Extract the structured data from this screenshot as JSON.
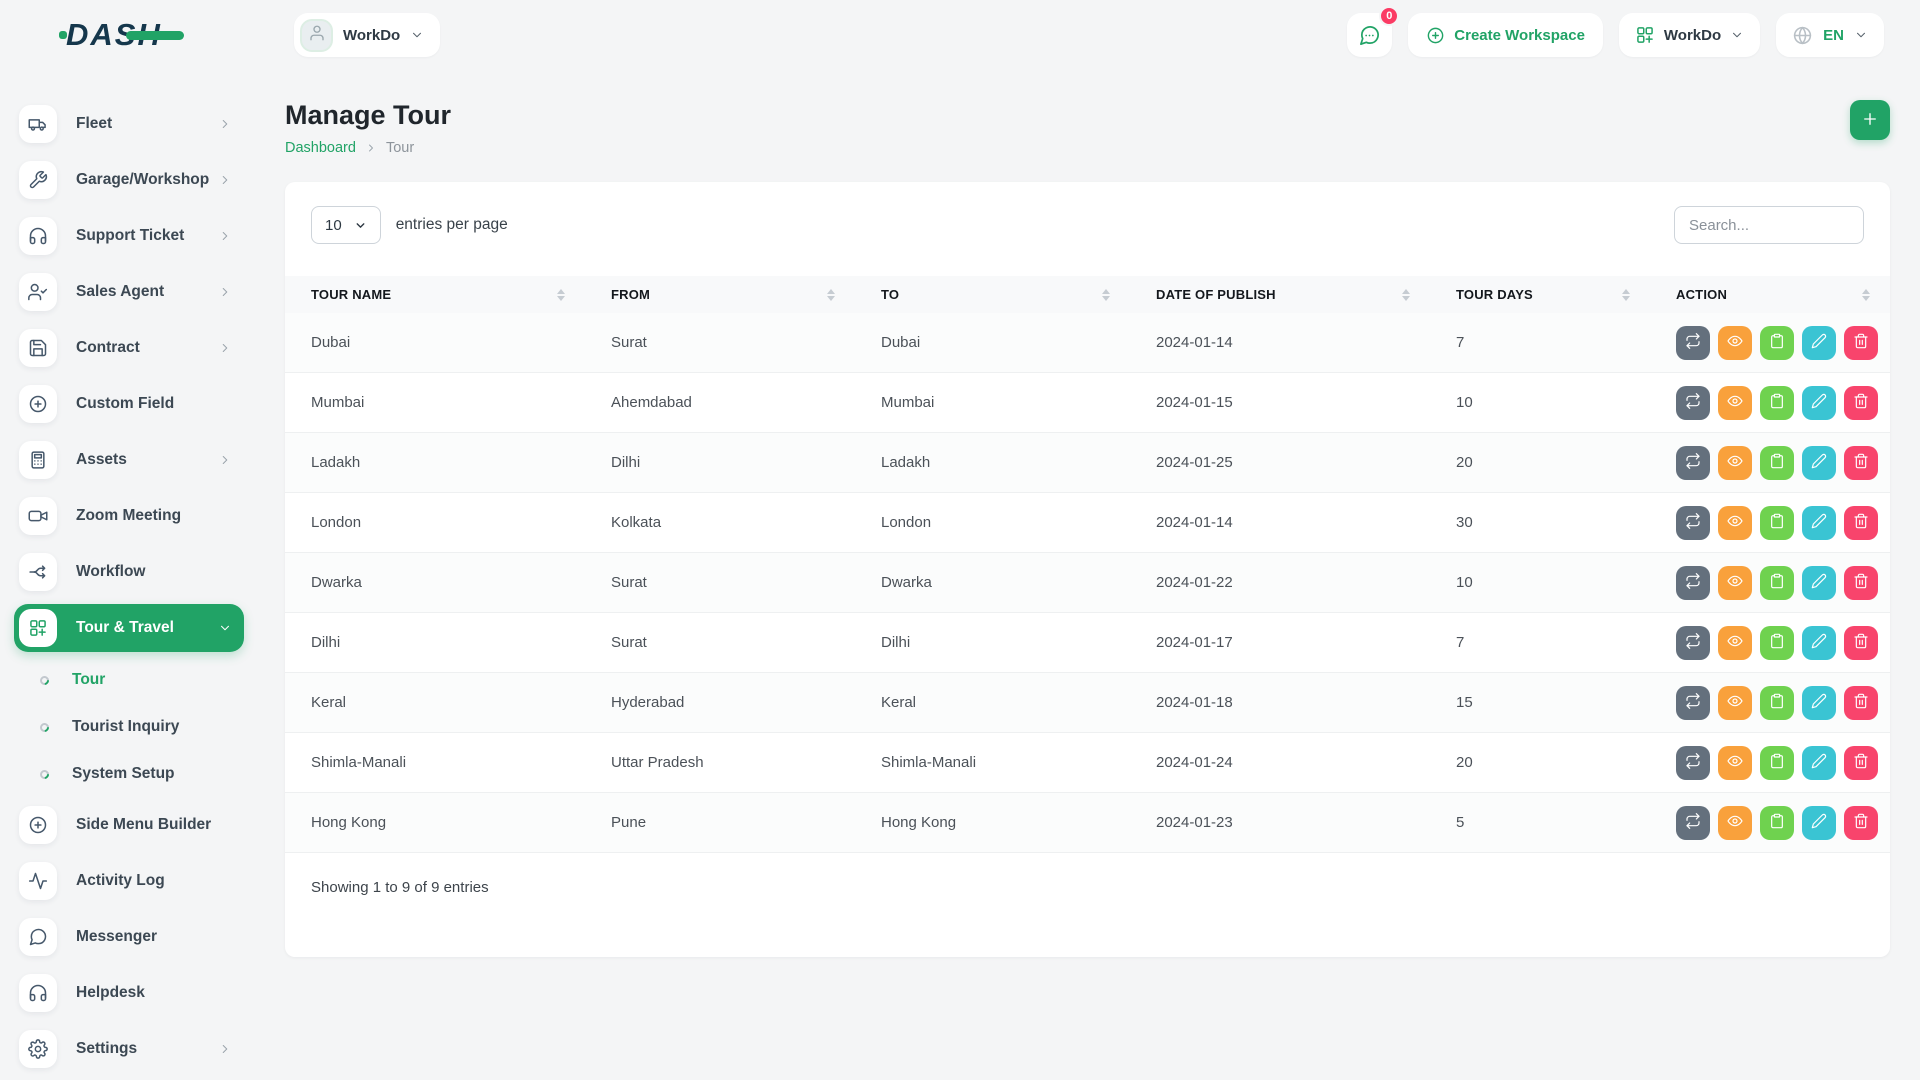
{
  "brand": {
    "logo_text": "DASH",
    "green": "#21a366",
    "navy": "#15374c"
  },
  "header": {
    "workspace_pill": {
      "label": "WorkDo"
    },
    "chat": {
      "badge": "0"
    },
    "create_workspace": {
      "label": "Create Workspace"
    },
    "workspace_switcher": {
      "label": "WorkDo"
    },
    "language": {
      "label": "EN"
    }
  },
  "sidebar": {
    "items": [
      {
        "label": "Fleet",
        "icon": "truck",
        "chevron": "right"
      },
      {
        "label": "Garage/Workshop",
        "icon": "wrench",
        "chevron": "right"
      },
      {
        "label": "Support Ticket",
        "icon": "headphones",
        "chevron": "right"
      },
      {
        "label": "Sales Agent",
        "icon": "user-check",
        "chevron": "right"
      },
      {
        "label": "Contract",
        "icon": "save",
        "chevron": "right"
      },
      {
        "label": "Custom Field",
        "icon": "plus-circle",
        "chevron": ""
      },
      {
        "label": "Assets",
        "icon": "calculator",
        "chevron": "right"
      },
      {
        "label": "Zoom Meeting",
        "icon": "video",
        "chevron": ""
      },
      {
        "label": "Workflow",
        "icon": "workflow",
        "chevron": ""
      },
      {
        "label": "Tour & Travel",
        "icon": "grid-plus",
        "chevron": "down",
        "active": true
      },
      {
        "label": "Tour",
        "type": "sub",
        "active": true
      },
      {
        "label": "Tourist Inquiry",
        "type": "sub"
      },
      {
        "label": "System Setup",
        "type": "sub"
      },
      {
        "label": "Side Menu Builder",
        "icon": "plus-circle",
        "chevron": ""
      },
      {
        "label": "Activity Log",
        "icon": "activity",
        "chevron": ""
      },
      {
        "label": "Messenger",
        "icon": "message",
        "chevron": ""
      },
      {
        "label": "Helpdesk",
        "icon": "headphones",
        "chevron": ""
      },
      {
        "label": "Settings",
        "icon": "gear",
        "chevron": "right"
      }
    ]
  },
  "page": {
    "title": "Manage Tour",
    "breadcrumb": {
      "link": "Dashboard",
      "current": "Tour"
    }
  },
  "controls": {
    "page_size": "10",
    "entries_label": "entries per page",
    "search_placeholder": "Search..."
  },
  "table": {
    "columns": [
      "TOUR NAME",
      "FROM",
      "TO",
      "DATE OF PUBLISH",
      "TOUR DAYS",
      "ACTION"
    ],
    "rows": [
      [
        "Dubai",
        "Surat",
        "Dubai",
        "2024-01-14",
        "7"
      ],
      [
        "Mumbai",
        "Ahemdabad",
        "Mumbai",
        "2024-01-15",
        "10"
      ],
      [
        "Ladakh",
        "Dilhi",
        "Ladakh",
        "2024-01-25",
        "20"
      ],
      [
        "London",
        "Kolkata",
        "London",
        "2024-01-14",
        "30"
      ],
      [
        "Dwarka",
        "Surat",
        "Dwarka",
        "2024-01-22",
        "10"
      ],
      [
        "Dilhi",
        "Surat",
        "Dilhi",
        "2024-01-17",
        "7"
      ],
      [
        "Keral",
        "Hyderabad",
        "Keral",
        "2024-01-18",
        "15"
      ],
      [
        "Shimla-Manali",
        "Uttar Pradesh",
        "Shimla-Manali",
        "2024-01-24",
        "20"
      ],
      [
        "Hong Kong",
        "Pune",
        "Hong Kong",
        "2024-01-23",
        "5"
      ]
    ],
    "actions": [
      {
        "name": "duplicate",
        "icon": "repeat-icon",
        "color": "#64707d"
      },
      {
        "name": "view",
        "icon": "eye-icon",
        "color": "#f9a13c"
      },
      {
        "name": "copy",
        "icon": "clipboard-icon",
        "color": "#6fd24f"
      },
      {
        "name": "edit",
        "icon": "pencil-icon",
        "color": "#3ac4d3"
      },
      {
        "name": "delete",
        "icon": "trash-icon",
        "color": "#f8446c"
      }
    ],
    "summary": "Showing 1 to 9 of 9 entries"
  }
}
